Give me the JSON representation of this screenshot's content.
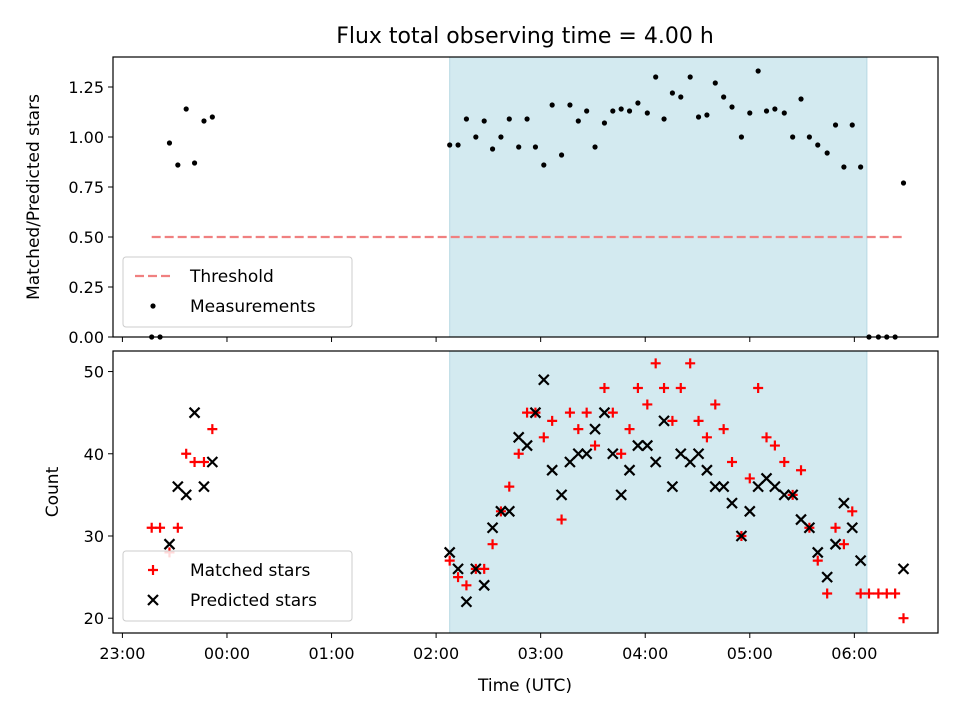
{
  "chart_data": {
    "type": "scatter",
    "title": "Flux total observing time = 4.00 h",
    "xlabel": "Time (UTC)",
    "xticks": [
      "23:00",
      "00:00",
      "01:00",
      "02:00",
      "03:00",
      "04:00",
      "05:00",
      "06:00"
    ],
    "xrange_hours": [
      -1.09,
      6.8
    ],
    "shaded_span_hours": [
      2.13,
      6.12
    ],
    "shaded_color": "#d3eaf0",
    "panels": [
      {
        "name": "ratio",
        "ylabel": "Matched/Predicted stars",
        "ylim": [
          0,
          1.4
        ],
        "yticks": [
          "0.00",
          "0.25",
          "0.50",
          "0.75",
          "1.00",
          "1.25"
        ],
        "legend": [
          "Threshold",
          "Measurements"
        ],
        "threshold": {
          "name": "Threshold",
          "value": 0.5,
          "x_from": -0.72,
          "x_to": 6.47,
          "color": "#f08080"
        },
        "series": [
          {
            "name": "Measurements",
            "color": "#000000",
            "x": [
              -0.72,
              -0.64,
              -0.55,
              -0.47,
              -0.39,
              -0.31,
              -0.22,
              -0.14,
              2.13,
              2.21,
              2.29,
              2.38,
              2.46,
              2.54,
              2.62,
              2.7,
              2.79,
              2.87,
              2.95,
              3.03,
              3.11,
              3.2,
              3.28,
              3.36,
              3.44,
              3.52,
              3.61,
              3.69,
              3.77,
              3.85,
              3.93,
              4.02,
              4.1,
              4.18,
              4.26,
              4.34,
              4.43,
              4.51,
              4.59,
              4.67,
              4.75,
              4.83,
              4.92,
              5.0,
              5.08,
              5.16,
              5.24,
              5.33,
              5.41,
              5.49,
              5.57,
              5.65,
              5.74,
              5.82,
              5.9,
              5.98,
              6.06,
              6.14,
              6.23,
              6.31,
              6.39,
              6.47
            ],
            "y": [
              0.0,
              0.0,
              0.97,
              0.86,
              1.14,
              0.87,
              1.08,
              1.1,
              0.96,
              0.96,
              1.09,
              1.0,
              1.08,
              0.94,
              1.0,
              1.09,
              0.95,
              1.09,
              0.95,
              0.86,
              1.16,
              0.91,
              1.16,
              1.08,
              1.13,
              0.95,
              1.07,
              1.13,
              1.14,
              1.13,
              1.17,
              1.12,
              1.3,
              1.09,
              1.22,
              1.2,
              1.3,
              1.1,
              1.11,
              1.27,
              1.2,
              1.15,
              1.0,
              1.12,
              1.33,
              1.13,
              1.14,
              1.12,
              1.0,
              1.19,
              1.0,
              0.96,
              0.92,
              1.06,
              0.85,
              1.06,
              0.85,
              0.0,
              0.0,
              0.0,
              0.0,
              0.77
            ]
          }
        ]
      },
      {
        "name": "count",
        "ylabel": "Count",
        "ylim": [
          18.2,
          52.5
        ],
        "yticks": [
          "20",
          "30",
          "40",
          "50"
        ],
        "legend": [
          "Matched stars",
          "Predicted stars"
        ],
        "series": [
          {
            "name": "Matched stars",
            "color": "#ff0000",
            "marker": "+",
            "x": [
              -0.72,
              -0.64,
              -0.55,
              -0.47,
              -0.39,
              -0.31,
              -0.22,
              -0.14,
              2.13,
              2.21,
              2.29,
              2.38,
              2.46,
              2.54,
              2.62,
              2.7,
              2.79,
              2.87,
              2.95,
              3.03,
              3.11,
              3.2,
              3.28,
              3.36,
              3.44,
              3.52,
              3.61,
              3.69,
              3.77,
              3.85,
              3.93,
              4.02,
              4.1,
              4.18,
              4.26,
              4.34,
              4.43,
              4.51,
              4.59,
              4.67,
              4.75,
              4.83,
              4.92,
              5.0,
              5.08,
              5.16,
              5.24,
              5.33,
              5.41,
              5.49,
              5.57,
              5.65,
              5.74,
              5.82,
              5.9,
              5.98,
              6.06,
              6.14,
              6.23,
              6.31,
              6.39,
              6.47
            ],
            "y": [
              31,
              31,
              28,
              31,
              40,
              39,
              39,
              43,
              27,
              25,
              24,
              26,
              26,
              29,
              33,
              36,
              40,
              45,
              45,
              42,
              44,
              32,
              45,
              43,
              45,
              41,
              48,
              45,
              40,
              43,
              48,
              46,
              51,
              48,
              44,
              48,
              51,
              44,
              42,
              46,
              43,
              39,
              30,
              37,
              48,
              42,
              41,
              39,
              35,
              38,
              31,
              27,
              23,
              31,
              29,
              33,
              23,
              23,
              23,
              23,
              23,
              20
            ]
          },
          {
            "name": "Predicted stars",
            "color": "#000000",
            "marker": "x",
            "x": [
              -0.55,
              -0.47,
              -0.39,
              -0.31,
              -0.22,
              -0.14,
              2.13,
              2.21,
              2.29,
              2.38,
              2.46,
              2.54,
              2.62,
              2.7,
              2.79,
              2.87,
              2.95,
              3.03,
              3.11,
              3.2,
              3.28,
              3.36,
              3.44,
              3.52,
              3.61,
              3.69,
              3.77,
              3.85,
              3.93,
              4.02,
              4.1,
              4.18,
              4.26,
              4.34,
              4.43,
              4.51,
              4.59,
              4.67,
              4.75,
              4.83,
              4.92,
              5.0,
              5.08,
              5.16,
              5.24,
              5.33,
              5.41,
              5.49,
              5.57,
              5.65,
              5.74,
              5.82,
              5.9,
              5.98,
              6.06,
              6.47
            ],
            "y": [
              29,
              36,
              35,
              45,
              36,
              39,
              28,
              26,
              22,
              26,
              24,
              31,
              33,
              33,
              42,
              41,
              45,
              49,
              38,
              35,
              39,
              40,
              40,
              43,
              45,
              40,
              35,
              38,
              41,
              41,
              39,
              44,
              36,
              40,
              39,
              40,
              38,
              36,
              36,
              34,
              30,
              33,
              36,
              37,
              36,
              35,
              35,
              32,
              31,
              28,
              25,
              29,
              34,
              31,
              27,
              26
            ]
          }
        ]
      }
    ]
  }
}
